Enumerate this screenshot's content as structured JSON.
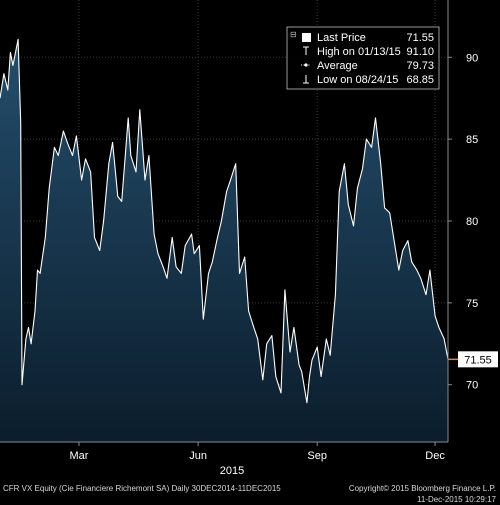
{
  "chart_data": {
    "type": "area",
    "xlim": [
      "2014-12-30",
      "2015-12-11"
    ],
    "ylim": [
      66.5,
      93.5
    ],
    "y_ticks": [
      70,
      75,
      80,
      85,
      90
    ],
    "y_tick_labels": [
      "70",
      "75",
      "80",
      "85",
      "90"
    ],
    "x_ticks": [
      {
        "date": "2015-03-01",
        "label": "Mar"
      },
      {
        "date": "2015-06-01",
        "label": "Jun"
      },
      {
        "date": "2015-09-01",
        "label": "Sep"
      },
      {
        "date": "2015-12-01",
        "label": "Dec"
      }
    ],
    "year_label": "2015",
    "grid": true,
    "legend_position": "top-right",
    "last_value_label": "71.55",
    "legend": [
      {
        "icon": "filled-square-icon",
        "label": "Last Price",
        "value": "71.55"
      },
      {
        "icon": "high-marker-icon",
        "label": "High on 01/13/15",
        "value": "91.10"
      },
      {
        "icon": "average-marker-icon",
        "label": "Average",
        "value": "79.73"
      },
      {
        "icon": "low-marker-icon",
        "label": "Low on 08/24/15",
        "value": "68.85"
      }
    ],
    "colors": {
      "fill_top": "#244e6c",
      "fill_bottom": "#0b1d2c",
      "line": "#ffffff",
      "grid": "#3a3a3a",
      "last_tag": "#ffffff",
      "last_tag_line": "#d68a2a"
    },
    "series": [
      {
        "x": [
          "2014-12-30",
          "2015-01-02",
          "2015-01-05",
          "2015-01-07",
          "2015-01-09",
          "2015-01-13",
          "2015-01-15",
          "2015-01-16",
          "2015-01-19",
          "2015-01-21",
          "2015-01-23",
          "2015-01-26",
          "2015-01-28",
          "2015-01-30",
          "2015-02-03",
          "2015-02-06",
          "2015-02-10",
          "2015-02-13",
          "2015-02-17",
          "2015-02-20",
          "2015-02-24",
          "2015-02-27",
          "2015-03-03",
          "2015-03-06",
          "2015-03-10",
          "2015-03-13",
          "2015-03-17",
          "2015-03-20",
          "2015-03-24",
          "2015-03-27",
          "2015-03-31",
          "2015-04-03",
          "2015-04-08",
          "2015-04-10",
          "2015-04-14",
          "2015-04-17",
          "2015-04-21",
          "2015-04-24",
          "2015-04-28",
          "2015-05-01",
          "2015-05-05",
          "2015-05-08",
          "2015-05-12",
          "2015-05-15",
          "2015-05-19",
          "2015-05-22",
          "2015-05-27",
          "2015-05-29",
          "2015-06-02",
          "2015-06-05",
          "2015-06-09",
          "2015-06-12",
          "2015-06-16",
          "2015-06-19",
          "2015-06-23",
          "2015-06-26",
          "2015-06-30",
          "2015-07-03",
          "2015-07-07",
          "2015-07-10",
          "2015-07-14",
          "2015-07-17",
          "2015-07-21",
          "2015-07-24",
          "2015-07-28",
          "2015-07-31",
          "2015-08-04",
          "2015-08-07",
          "2015-08-11",
          "2015-08-14",
          "2015-08-18",
          "2015-08-20",
          "2015-08-24",
          "2015-08-26",
          "2015-08-28",
          "2015-09-01",
          "2015-09-04",
          "2015-09-08",
          "2015-09-11",
          "2015-09-15",
          "2015-09-18",
          "2015-09-22",
          "2015-09-25",
          "2015-09-29",
          "2015-10-02",
          "2015-10-06",
          "2015-10-09",
          "2015-10-13",
          "2015-10-16",
          "2015-10-20",
          "2015-10-23",
          "2015-10-27",
          "2015-10-30",
          "2015-11-03",
          "2015-11-06",
          "2015-11-10",
          "2015-11-13",
          "2015-11-17",
          "2015-11-20",
          "2015-11-24",
          "2015-11-27",
          "2015-12-01",
          "2015-12-04",
          "2015-12-08",
          "2015-12-11"
        ],
        "y": [
          87.5,
          89.0,
          88.0,
          90.3,
          89.5,
          91.1,
          86.0,
          70.0,
          72.8,
          73.5,
          72.5,
          74.5,
          77.0,
          76.8,
          79.0,
          82.0,
          84.5,
          84.0,
          85.5,
          84.8,
          84.0,
          85.2,
          82.5,
          83.8,
          83.0,
          79.0,
          78.2,
          80.0,
          83.5,
          84.8,
          81.5,
          81.2,
          86.3,
          84.0,
          83.0,
          86.8,
          82.5,
          84.0,
          79.2,
          78.0,
          77.2,
          76.5,
          79.0,
          77.2,
          76.8,
          78.5,
          79.2,
          78.0,
          78.5,
          74.0,
          76.8,
          77.5,
          79.0,
          80.0,
          81.8,
          82.5,
          83.5,
          76.8,
          77.8,
          74.5,
          73.5,
          72.8,
          70.3,
          72.5,
          73.0,
          70.5,
          69.5,
          75.8,
          72.0,
          73.5,
          71.2,
          70.8,
          68.9,
          70.5,
          71.5,
          72.3,
          70.5,
          72.8,
          71.8,
          75.5,
          81.8,
          83.5,
          81.0,
          79.7,
          82.0,
          83.2,
          85.0,
          84.5,
          86.3,
          83.5,
          80.8,
          80.5,
          79.0,
          77.0,
          78.2,
          78.8,
          77.5,
          77.0,
          76.5,
          75.5,
          77.0,
          74.2,
          73.5,
          72.8,
          71.55
        ]
      }
    ]
  },
  "footer": {
    "left_text": "CFR VX Equity (Cie Financiere Richemont SA)  Daily 30DEC2014-11DEC2015",
    "right_line1": "Copyright© 2015 Bloomberg Finance L.P.",
    "right_line2": "11-Dec-2015 10:29:17"
  }
}
